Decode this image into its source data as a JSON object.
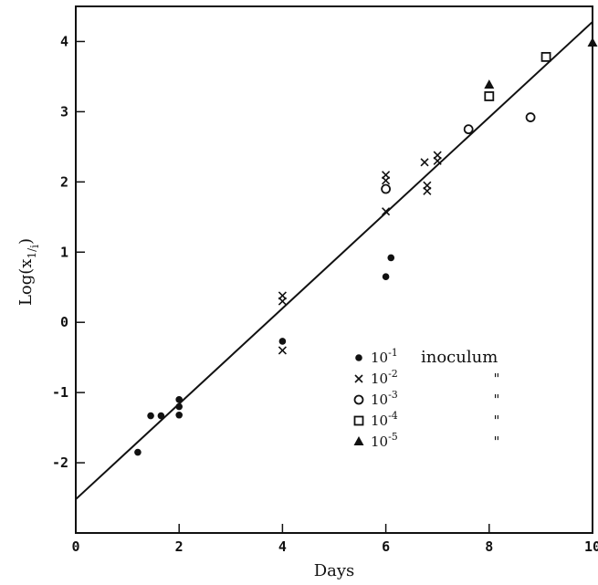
{
  "chart_data": {
    "type": "scatter",
    "xlabel": "Days",
    "ylabel": "Log(x1/i)",
    "xlim": [
      0,
      10
    ],
    "ylim": [
      -3,
      4.5
    ],
    "xticks": [
      "0",
      "2",
      "4",
      "6",
      "8",
      "10"
    ],
    "yticks": [
      "-2",
      "-1",
      "0",
      "1",
      "2",
      "3",
      "4"
    ],
    "grid": false,
    "legend_position": "lower-right",
    "legend_title": "inoculum",
    "legend_ditto": "\"",
    "series": [
      {
        "name": "10^-1",
        "marker": "filled-circle",
        "points": [
          [
            1.2,
            -1.85
          ],
          [
            1.45,
            -1.33
          ],
          [
            1.65,
            -1.33
          ],
          [
            2.0,
            -1.1
          ],
          [
            2.0,
            -1.2
          ],
          [
            2.0,
            -1.32
          ],
          [
            4.0,
            -0.27
          ],
          [
            6.0,
            0.65
          ],
          [
            6.1,
            0.92
          ]
        ]
      },
      {
        "name": "10^-2",
        "marker": "x",
        "points": [
          [
            4.0,
            0.38
          ],
          [
            4.0,
            0.3
          ],
          [
            4.0,
            -0.4
          ],
          [
            6.0,
            1.58
          ],
          [
            6.0,
            2.1
          ],
          [
            6.0,
            2.02
          ],
          [
            6.75,
            2.28
          ],
          [
            6.8,
            1.95
          ],
          [
            6.8,
            1.87
          ],
          [
            7.0,
            2.38
          ],
          [
            7.0,
            2.3
          ]
        ]
      },
      {
        "name": "10^-3",
        "marker": "open-circle",
        "points": [
          [
            6.0,
            1.9
          ],
          [
            7.6,
            2.75
          ],
          [
            8.8,
            2.92
          ]
        ]
      },
      {
        "name": "10^-4",
        "marker": "open-square",
        "points": [
          [
            8.0,
            3.22
          ],
          [
            9.1,
            3.78
          ]
        ]
      },
      {
        "name": "10^-5",
        "marker": "filled-triangle",
        "points": [
          [
            8.0,
            3.38
          ],
          [
            10.0,
            3.98
          ]
        ]
      }
    ],
    "fit_line": {
      "x": [
        0,
        10
      ],
      "y": [
        -2.52,
        4.28
      ]
    },
    "legend": [
      {
        "base": "10",
        "exp": "-1",
        "suffix": "inoculum"
      },
      {
        "base": "10",
        "exp": "-2",
        "suffix": "\""
      },
      {
        "base": "10",
        "exp": "-3",
        "suffix": "\""
      },
      {
        "base": "10",
        "exp": "-4",
        "suffix": "\""
      },
      {
        "base": "10",
        "exp": "-5",
        "suffix": "\""
      }
    ]
  }
}
